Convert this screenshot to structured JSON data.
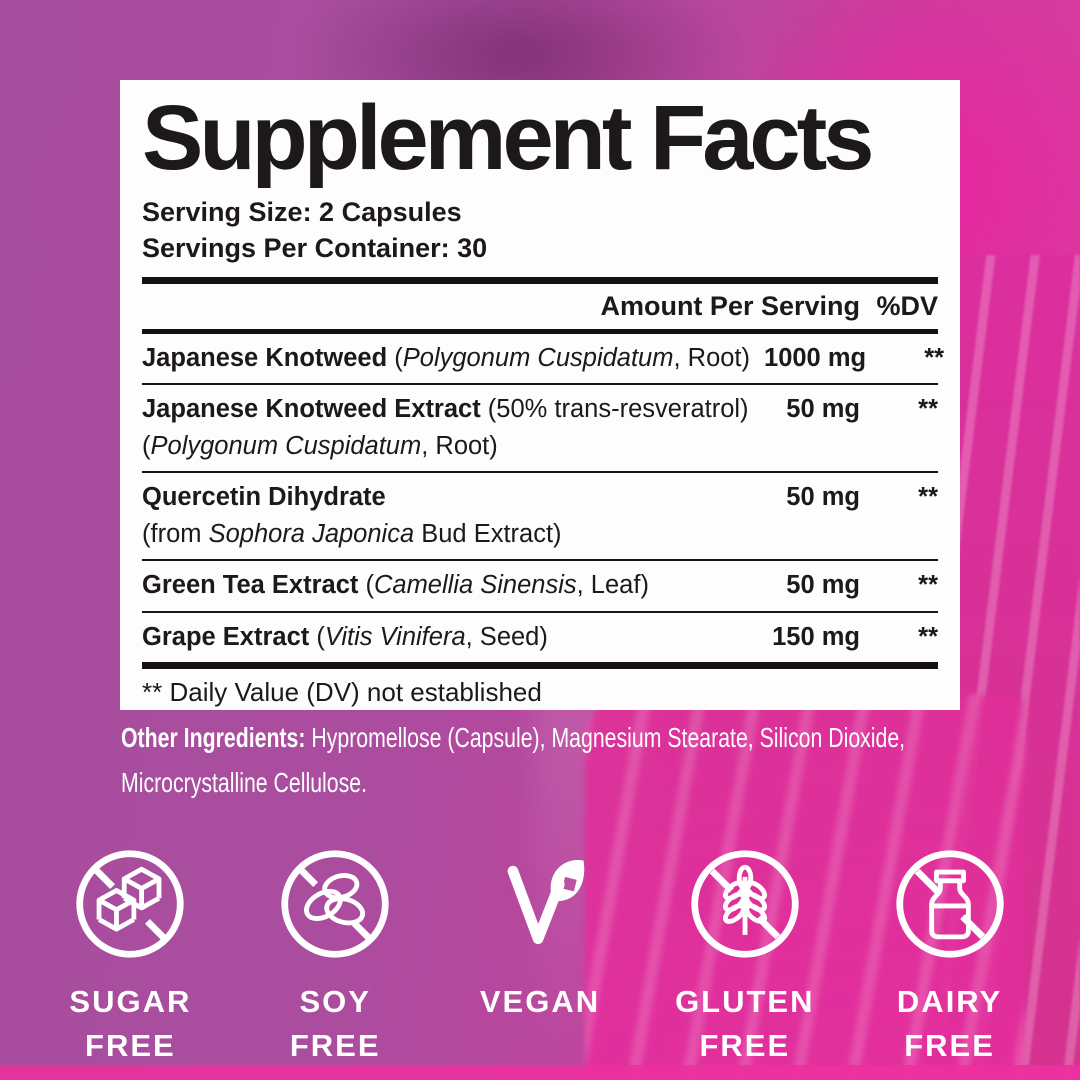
{
  "colors": {
    "background_purple": "#aa4d9f",
    "bright_pink": "#e02da1",
    "fabric_pink": "#d5338f",
    "panel_white": "#fdfdfd",
    "text_black": "#1d191a",
    "badge_white": "#ffffff"
  },
  "panel": {
    "title": "Supplement Facts",
    "serving_size": "Serving Size: 2 Capsules",
    "servings_per_container": "Servings Per Container: 30",
    "columns": {
      "amount": "Amount Per Serving",
      "dv": "%DV"
    },
    "rows": [
      {
        "line1": [
          {
            "t": "Japanese Knotweed",
            "b": 1
          },
          {
            "t": " ("
          },
          {
            "t": "Polygonum Cuspidatum",
            "i": 1
          },
          {
            "t": ", Root)"
          }
        ],
        "amount": "1000 mg",
        "dv": "**"
      },
      {
        "line1": [
          {
            "t": "Japanese Knotweed Extract",
            "b": 1
          },
          {
            "t": " (50% trans-resveratrol)"
          }
        ],
        "line2": [
          {
            "t": "("
          },
          {
            "t": "Polygonum Cuspidatum",
            "i": 1
          },
          {
            "t": ", Root)"
          }
        ],
        "amount": "50 mg",
        "dv": "**"
      },
      {
        "line1": [
          {
            "t": "Quercetin Dihydrate",
            "b": 1
          }
        ],
        "line2": [
          {
            "t": "(from "
          },
          {
            "t": "Sophora Japonica",
            "i": 1
          },
          {
            "t": " Bud Extract)"
          }
        ],
        "amount": "50 mg",
        "dv": "**"
      },
      {
        "line1": [
          {
            "t": "Green Tea Extract",
            "b": 1
          },
          {
            "t": " ("
          },
          {
            "t": "Camellia Sinensis",
            "i": 1
          },
          {
            "t": ", Leaf)"
          }
        ],
        "amount": "50 mg",
        "dv": "**"
      },
      {
        "line1": [
          {
            "t": "Grape Extract",
            "b": 1
          },
          {
            "t": " ("
          },
          {
            "t": "Vitis Vinifera",
            "i": 1
          },
          {
            "t": ", Seed)"
          }
        ],
        "amount": "150 mg",
        "dv": "**"
      }
    ],
    "footnote": "** Daily Value (DV) not established"
  },
  "other_ingredients": {
    "label": "Other Ingredients:",
    "text": " Hypromellose (Capsule), Magnesium Stearate, Silicon Dioxide, Microcrystalline Cellulose."
  },
  "badges": [
    {
      "icon": "no-sugar-icon",
      "label": "SUGAR\nFREE"
    },
    {
      "icon": "no-soy-icon",
      "label": "SOY\nFREE"
    },
    {
      "icon": "vegan-leaf-icon",
      "label": "VEGAN"
    },
    {
      "icon": "no-gluten-icon",
      "label": "GLUTEN\nFREE"
    },
    {
      "icon": "no-dairy-icon",
      "label": "DAIRY\nFREE"
    }
  ]
}
